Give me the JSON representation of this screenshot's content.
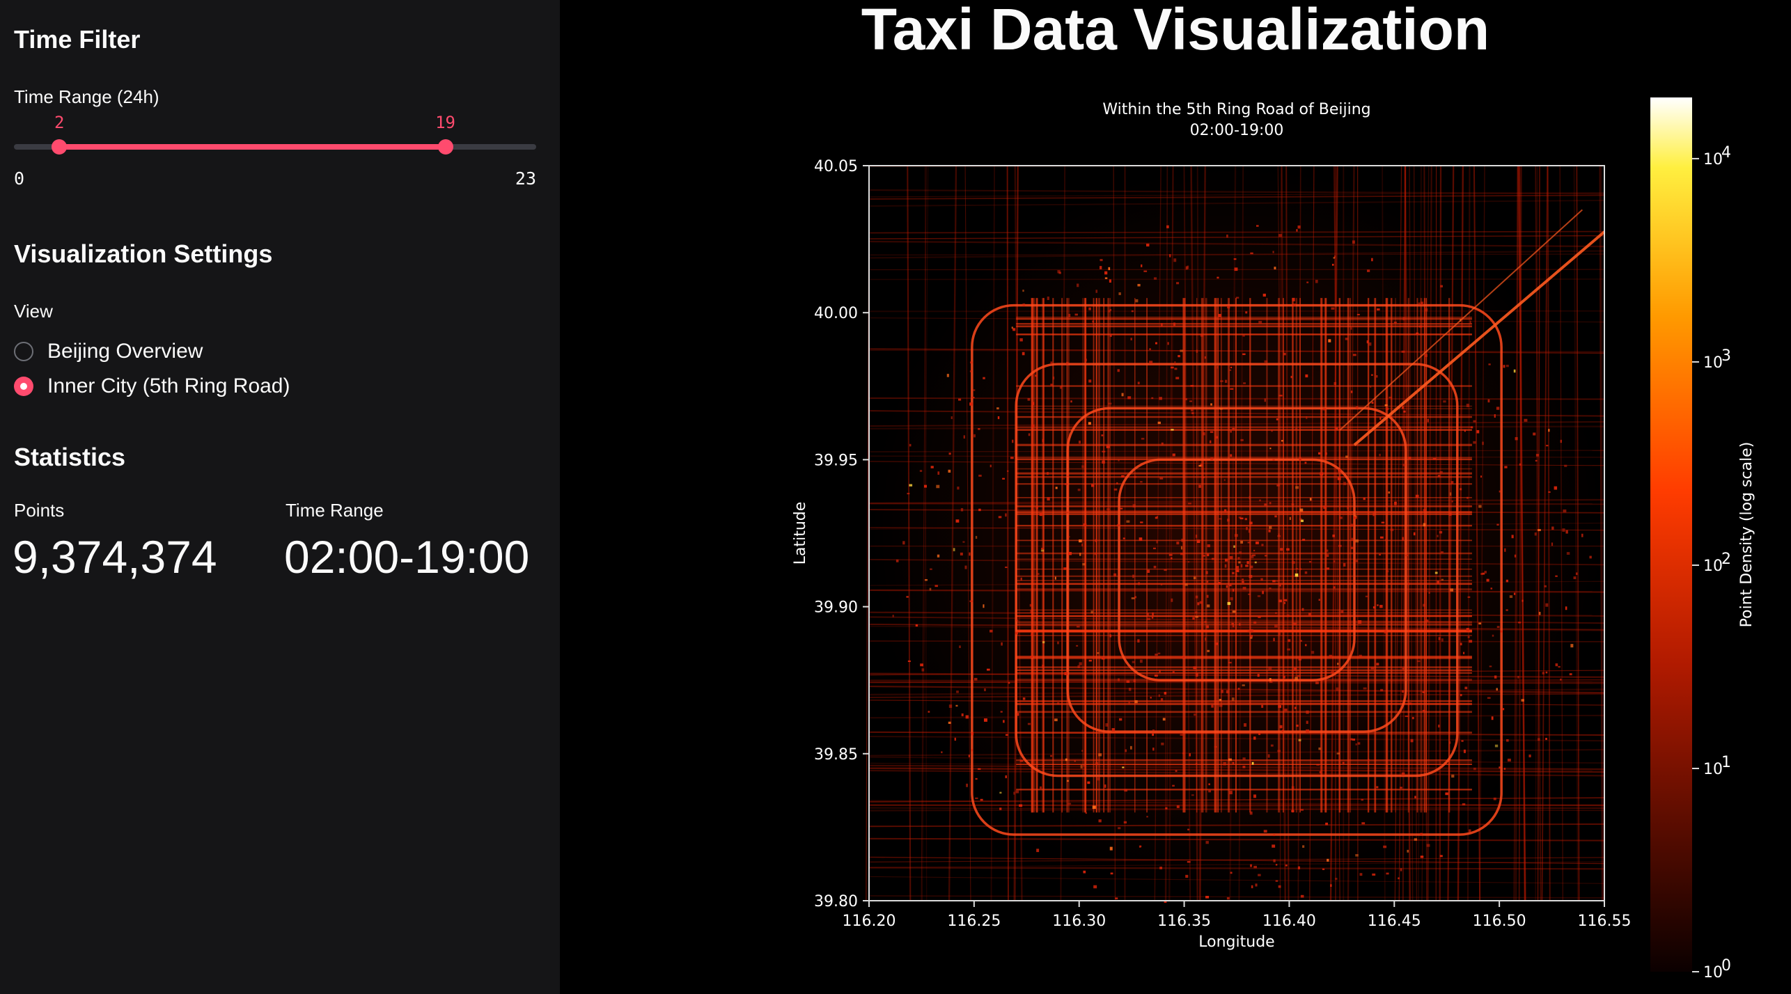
{
  "sidebar": {
    "time_filter_heading": "Time Filter",
    "time_range_label": "Time Range (24h)",
    "slider": {
      "min": 0,
      "max": 23,
      "low": 2,
      "high": 19,
      "min_label": "0",
      "max_label": "23",
      "low_label": "2",
      "high_label": "19"
    },
    "viz_heading": "Visualization Settings",
    "view_label": "View",
    "view_options": [
      {
        "label": "Beijing Overview",
        "selected": false
      },
      {
        "label": "Inner City (5th Ring Road)",
        "selected": true
      }
    ],
    "stats_heading": "Statistics",
    "points_label": "Points",
    "points_value": "9,374,374",
    "time_range_stat_label": "Time Range",
    "time_range_stat_value": "02:00-19:00"
  },
  "main": {
    "title": "Taxi Data Visualization"
  },
  "colors": {
    "accent": "#ff4b6e",
    "sidebar_bg": "#151517",
    "main_bg": "#000000"
  },
  "chart_data": {
    "type": "heatmap",
    "title": "Within the 5th Ring Road of Beijing",
    "subtitle": "02:00-19:00",
    "xlabel": "Longitude",
    "ylabel": "Latitude",
    "xlim": [
      116.2,
      116.55
    ],
    "ylim": [
      39.8,
      40.05
    ],
    "xticks": [
      "116.20",
      "116.25",
      "116.30",
      "116.35",
      "116.40",
      "116.45",
      "116.50",
      "116.55"
    ],
    "xtick_values": [
      116.2,
      116.25,
      116.3,
      116.35,
      116.4,
      116.45,
      116.5,
      116.55
    ],
    "yticks": [
      "39.80",
      "39.85",
      "39.90",
      "39.95",
      "40.00",
      "40.05"
    ],
    "ytick_values": [
      39.8,
      39.85,
      39.9,
      39.95,
      40.0,
      40.05
    ],
    "colorbar": {
      "label": "Point Density (log scale)",
      "scale": "log",
      "range": [
        1,
        20000
      ],
      "colormap": "hot",
      "ticks": [
        {
          "value": 1,
          "base": "10",
          "exp": "0"
        },
        {
          "value": 10,
          "base": "10",
          "exp": "1"
        },
        {
          "value": 100,
          "base": "10",
          "exp": "2"
        },
        {
          "value": 1000,
          "base": "10",
          "exp": "3"
        },
        {
          "value": 10000,
          "base": "10",
          "exp": "4"
        }
      ]
    }
  }
}
